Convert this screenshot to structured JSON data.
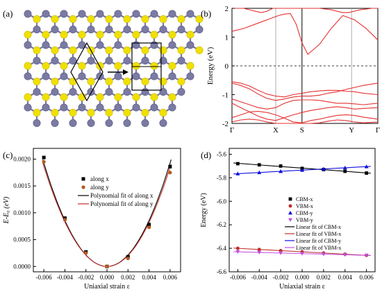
{
  "panels": {
    "a": {
      "label": "(a)"
    },
    "b": {
      "label": "(b)"
    },
    "c": {
      "label": "(c)"
    },
    "d": {
      "label": "(d)"
    }
  },
  "colors": {
    "mo_atom": "#7a7aa3",
    "s_atom": "#f0e000",
    "band": "#e53030",
    "line_black": "#000000",
    "c_along_y": "#b05a1e",
    "c_fit_x": "#000000",
    "c_fit_y": "#c0302a",
    "d_cbm_x": "#000000",
    "d_vbm_x": "#c0302a",
    "d_cbm_y": "#1010e0",
    "d_vbm_y": "#c050e0",
    "d_fit_cbm_x": "#000000",
    "d_fit_vbm_x": "#c0302a",
    "d_fit_cbm_y": "#1010e0",
    "d_fit_vbm_y": "#c050e0"
  },
  "chart_data": [
    {
      "panel": "b",
      "type": "line",
      "ylabel": "Energy (eV)",
      "ylim": [
        -2,
        2
      ],
      "yticks": [
        "-2",
        "-1",
        "0",
        "1",
        "2"
      ],
      "xticks": [
        "Γ",
        "X",
        "S",
        "Y",
        "Γ"
      ],
      "fermi_level": 0,
      "series": [
        {
          "x": [
            0,
            0.2,
            0.4,
            0.6,
            0.8,
            1.0,
            1.2,
            1.4,
            1.6,
            2.0,
            2.4,
            2.8,
            3.0,
            3.4,
            3.8,
            4.0,
            4.4,
            4.8,
            5.0
          ],
          "y": [
            2.0,
            2.0,
            2.0,
            1.95,
            1.9,
            1.85,
            1.9,
            2.0,
            2.0,
            2.0,
            2.0,
            2.0,
            2.0,
            1.95,
            1.85,
            1.85,
            1.95,
            2.0,
            2.0
          ]
        },
        {
          "x": [
            0,
            0.4,
            0.8,
            1.2,
            1.6,
            1.8,
            2.0,
            2.2,
            2.4,
            2.6,
            3.0,
            3.4,
            3.8,
            4.2,
            4.6,
            5.0
          ],
          "y": [
            1.2,
            1.3,
            1.45,
            1.6,
            1.75,
            1.8,
            1.82,
            1.45,
            0.8,
            0.4,
            0.75,
            1.3,
            1.75,
            1.6,
            1.3,
            0.9
          ]
        },
        {
          "x": [
            0,
            0.3,
            0.6,
            0.9,
            1.2,
            1.5,
            1.8,
            2.1,
            2.4,
            2.7,
            3.0,
            3.3,
            3.6,
            3.9,
            4.2,
            4.5,
            5.0
          ],
          "y": [
            -0.6,
            -0.68,
            -0.8,
            -0.98,
            -1.13,
            -1.2,
            -1.15,
            -1.08,
            -1.05,
            -1.05,
            -1.02,
            -0.95,
            -0.9,
            -0.82,
            -0.75,
            -0.68,
            -0.6
          ]
        },
        {
          "x": [
            0,
            0.3,
            0.6,
            0.9,
            1.2,
            1.5,
            1.8,
            2.1,
            2.4,
            2.7,
            3.0,
            3.3,
            3.6,
            3.9,
            4.2,
            4.5,
            5.0
          ],
          "y": [
            -0.55,
            -0.6,
            -0.7,
            -0.85,
            -0.98,
            -1.05,
            -1.08,
            -1.0,
            -0.95,
            -0.9,
            -0.87,
            -0.85,
            -0.85,
            -0.88,
            -0.9,
            -0.95,
            -1.0
          ]
        },
        {
          "x": [
            0,
            0.3,
            0.6,
            0.9,
            1.2,
            1.5,
            1.8,
            2.1,
            2.4,
            2.7,
            3.0,
            3.3,
            3.6,
            3.9,
            4.2,
            4.5,
            5.0
          ],
          "y": [
            -1.15,
            -1.25,
            -1.35,
            -1.45,
            -1.5,
            -1.45,
            -1.3,
            -1.2,
            -1.18,
            -1.18,
            -1.2,
            -1.25,
            -1.3,
            -1.3,
            -1.32,
            -1.35,
            -1.3
          ]
        },
        {
          "x": [
            0,
            0.3,
            0.6,
            0.9,
            1.2,
            1.5,
            1.8,
            2.1,
            2.4,
            2.7,
            3.0,
            3.3,
            3.6,
            3.9,
            4.2,
            4.5,
            5.0
          ],
          "y": [
            -1.3,
            -1.45,
            -1.6,
            -1.75,
            -1.85,
            -1.9,
            -1.8,
            -1.7,
            -1.62,
            -1.55,
            -1.5,
            -1.45,
            -1.42,
            -1.45,
            -1.5,
            -1.48,
            -1.45
          ]
        },
        {
          "x": [
            0,
            0.3,
            0.6,
            0.9,
            1.2,
            1.5,
            1.8,
            2.1,
            2.4,
            2.7,
            3.0,
            3.3,
            3.6,
            3.9,
            4.2,
            4.5,
            5.0
          ],
          "y": [
            -1.8,
            -1.7,
            -1.6,
            -1.58,
            -1.62,
            -1.7,
            -1.82,
            -1.95,
            -1.98,
            -1.9,
            -1.85,
            -1.78,
            -1.72,
            -1.7,
            -1.72,
            -1.78,
            -1.85
          ]
        },
        {
          "x": [
            0,
            0.3,
            0.6,
            0.9,
            1.2,
            1.5,
            1.8,
            2.1,
            2.4,
            2.7,
            3.0,
            3.3,
            3.6,
            3.9,
            4.2,
            4.5,
            5.0
          ],
          "y": [
            -1.95,
            -1.88,
            -1.85,
            -1.88,
            -1.95,
            -2.0,
            -2.0,
            -2.0,
            -2.0,
            -2.0,
            -1.98,
            -1.92,
            -1.88,
            -1.9,
            -1.95,
            -1.98,
            -1.95
          ]
        }
      ]
    },
    {
      "panel": "c",
      "type": "scatter",
      "xlabel": "Uniaxial strain ε",
      "ylabel": "E-E₀ (eV)",
      "xlim": [
        -0.007,
        0.007
      ],
      "ylim": [
        -0.0001,
        0.0022
      ],
      "xticks": [
        "-0.006",
        "-0.004",
        "-0.002",
        "0.000",
        "0.002",
        "0.004",
        "0.006"
      ],
      "yticks": [
        "0.0000",
        "0.0005",
        "0.0010",
        "0.0015",
        "0.0020"
      ],
      "x": [
        -0.006,
        -0.004,
        -0.002,
        0.0,
        0.002,
        0.004,
        0.006
      ],
      "series": [
        {
          "name": "along x",
          "marker": "square",
          "values": [
            0.00203,
            0.0009,
            0.00027,
            0.0,
            0.00018,
            0.00078,
            0.00186
          ]
        },
        {
          "name": "along y",
          "marker": "circle",
          "values": [
            0.00195,
            0.00087,
            0.00025,
            0.0,
            0.00015,
            0.00073,
            0.00175
          ]
        },
        {
          "name": "Polynomial fit of along x",
          "kind": "fit",
          "poly": [
            0.0,
            0.0,
            53.5
          ]
        },
        {
          "name": "Polynomial fit of along y",
          "kind": "fit",
          "poly": [
            0.0,
            -0.0015,
            51.5
          ]
        }
      ]
    },
    {
      "panel": "d",
      "type": "scatter",
      "xlabel": "Uniaxial strain ε",
      "ylabel": "Energy (eV)",
      "xlim": [
        -0.0068,
        0.0068
      ],
      "ylim": [
        -6.6,
        -5.55
      ],
      "xticks": [
        "-0.006",
        "-0.004",
        "-0.002",
        "0.000",
        "0.002",
        "0.004",
        "0.006"
      ],
      "yticks": [
        "-5.6",
        "-5.8",
        "-6.0",
        "-6.2",
        "-6.4",
        "-6.6"
      ],
      "x": [
        -0.006,
        -0.004,
        -0.002,
        0.0,
        0.002,
        0.004,
        0.006
      ],
      "series": [
        {
          "name": "CBM-x",
          "marker": "square",
          "values": [
            -5.68,
            -5.69,
            -5.7,
            -5.72,
            -5.73,
            -5.745,
            -5.76
          ]
        },
        {
          "name": "VBM-x",
          "marker": "circle",
          "values": [
            -6.4,
            -6.41,
            -6.42,
            -6.43,
            -6.44,
            -6.45,
            -6.46
          ]
        },
        {
          "name": "CBM-y",
          "marker": "triangle-up",
          "values": [
            -5.765,
            -5.755,
            -5.745,
            -5.735,
            -5.725,
            -5.715,
            -5.705
          ]
        },
        {
          "name": "VBM-y",
          "marker": "triangle-down",
          "values": [
            -6.43,
            -6.435,
            -6.44,
            -6.445,
            -6.45,
            -6.455,
            -6.46
          ]
        },
        {
          "name": "Linear fit of CBM-x",
          "kind": "fit",
          "fits": "CBM-x"
        },
        {
          "name": "Linear fit of VBM-x",
          "kind": "fit",
          "fits": "VBM-x"
        },
        {
          "name": "Linear fit of CBM-y",
          "kind": "fit",
          "fits": "CBM-y"
        },
        {
          "name": "Linear fit of VBM-x",
          "kind": "fit",
          "fits": "VBM-y"
        }
      ]
    }
  ]
}
